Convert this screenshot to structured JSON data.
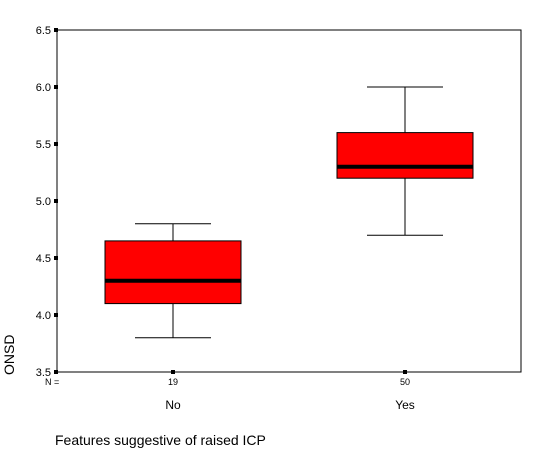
{
  "chart_data": {
    "type": "boxplot",
    "title": "",
    "xlabel": "Features suggestive of raised ICP",
    "ylabel": "ONSD",
    "ylim": [
      3.5,
      6.5
    ],
    "yticks": [
      "3.5",
      "4.0",
      "4.5",
      "5.0",
      "5.5",
      "6.0",
      "6.5"
    ],
    "n_label": "N =",
    "categories": [
      "No",
      "Yes"
    ],
    "n": [
      "19",
      "50"
    ],
    "boxes": [
      {
        "category": "No",
        "min": 3.8,
        "q1": 4.1,
        "median": 4.3,
        "q3": 4.65,
        "max": 4.8
      },
      {
        "category": "Yes",
        "min": 4.7,
        "q1": 5.2,
        "median": 5.3,
        "q3": 5.6,
        "max": 6.0
      }
    ],
    "box_color": "#ff0000",
    "grid": false,
    "legend": "none"
  }
}
